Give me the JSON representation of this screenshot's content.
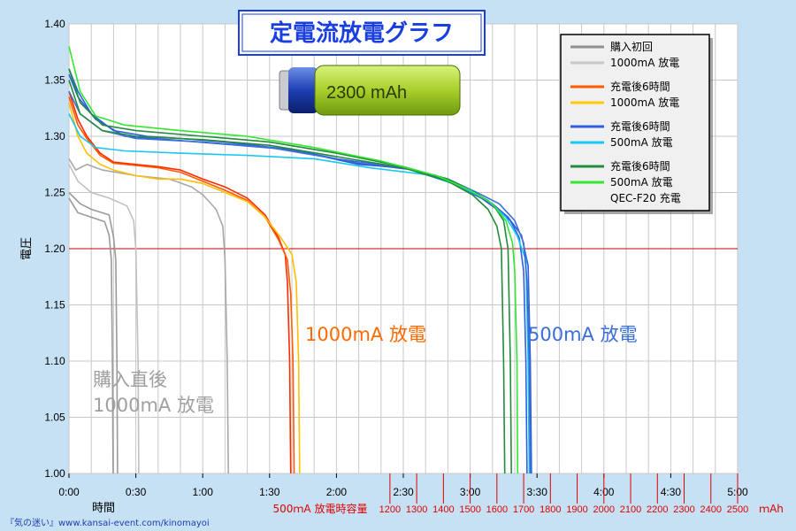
{
  "chart_data": {
    "type": "line",
    "title": "定電流放電グラフ",
    "xlabel": "時間",
    "ylabel": "電圧",
    "xlim": [
      0,
      300
    ],
    "ylim": [
      1.0,
      1.4
    ],
    "y_ticks": [
      "1.00",
      "1.05",
      "1.10",
      "1.15",
      "1.20",
      "1.25",
      "1.30",
      "1.35",
      "1.40"
    ],
    "x_ticks": [
      "0:00",
      "0:30",
      "1:00",
      "1:30",
      "2:00",
      "2:30",
      "3:00",
      "3:30",
      "4:00",
      "4:30",
      "5:00"
    ],
    "capacity_axis": {
      "label": "500ｍA 放電時容量",
      "ticks": [
        "1200",
        "1300",
        "1400",
        "1500",
        "1600",
        "1700",
        "1800",
        "1900",
        "2000",
        "2100",
        "2200",
        "2300",
        "2400",
        "2500"
      ],
      "unit": "ｍAh",
      "color": "#e00000"
    },
    "reference_line": {
      "y": 1.2,
      "color": "#cc0000"
    },
    "battery_label": "2300 mAh",
    "annotations": [
      {
        "text": "購入直後",
        "color": "#a0a0a0"
      },
      {
        "text": "1000mA 放電",
        "color": "#a0a0a0"
      },
      {
        "text": "1000mA 放電",
        "color": "#ff6a00"
      },
      {
        "text": "500mA 放電",
        "color": "#3a6fd8"
      }
    ],
    "legend": {
      "placement": "top-right",
      "groups": [
        {
          "lines": [
            "購入初回",
            "1000mA 放電"
          ],
          "colors": [
            "#909090",
            "#c8c8c8"
          ]
        },
        {
          "lines": [
            "充電後6時間",
            "1000mA 放電"
          ],
          "colors": [
            "#ff5a00",
            "#ffcc00"
          ]
        },
        {
          "lines": [
            "充電後6時間",
            "500mA 放電"
          ],
          "colors": [
            "#2f5fe0",
            "#19c8f0"
          ]
        },
        {
          "lines": [
            "充電後6時間",
            "500mA 放電",
            "QEC-F20 充電"
          ],
          "colors": [
            "#228b3c",
            "#33e633"
          ]
        }
      ]
    },
    "series": [
      {
        "color": "#9a9a9a",
        "points": [
          [
            0,
            1.245
          ],
          [
            4,
            1.232
          ],
          [
            10,
            1.228
          ],
          [
            16,
            1.224
          ],
          [
            18,
            1.212
          ],
          [
            19,
            1.19
          ],
          [
            19.5,
            1.1
          ],
          [
            19.8,
            1.0
          ]
        ]
      },
      {
        "color": "#9a9a9a",
        "points": [
          [
            0,
            1.25
          ],
          [
            5,
            1.24
          ],
          [
            10,
            1.235
          ],
          [
            18,
            1.23
          ],
          [
            20,
            1.21
          ],
          [
            21,
            1.19
          ],
          [
            21.5,
            1.1
          ],
          [
            21.8,
            1.0
          ]
        ]
      },
      {
        "color": "#c0c0c0",
        "points": [
          [
            0,
            1.275
          ],
          [
            4,
            1.26
          ],
          [
            10,
            1.25
          ],
          [
            18,
            1.245
          ],
          [
            26,
            1.238
          ],
          [
            29,
            1.225
          ],
          [
            30,
            1.2
          ],
          [
            31,
            1.1
          ],
          [
            31.3,
            1.0
          ]
        ]
      },
      {
        "color": "#a8a8a8",
        "points": [
          [
            0,
            1.28
          ],
          [
            3,
            1.27
          ],
          [
            8,
            1.275
          ],
          [
            15,
            1.27
          ],
          [
            30,
            1.265
          ],
          [
            45,
            1.262
          ],
          [
            55,
            1.255
          ],
          [
            60,
            1.248
          ],
          [
            66,
            1.235
          ],
          [
            69,
            1.22
          ],
          [
            70,
            1.19
          ],
          [
            71,
            1.1
          ],
          [
            71.5,
            1.0
          ]
        ]
      },
      {
        "color": "#ff2a00",
        "points": [
          [
            0,
            1.34
          ],
          [
            4,
            1.315
          ],
          [
            8,
            1.3
          ],
          [
            14,
            1.285
          ],
          [
            20,
            1.277
          ],
          [
            30,
            1.275
          ],
          [
            40,
            1.273
          ],
          [
            50,
            1.27
          ],
          [
            60,
            1.262
          ],
          [
            70,
            1.255
          ],
          [
            80,
            1.245
          ],
          [
            88,
            1.23
          ],
          [
            94,
            1.21
          ],
          [
            97,
            1.195
          ],
          [
            98,
            1.17
          ],
          [
            99,
            1.1
          ],
          [
            99.5,
            1.0
          ]
        ]
      },
      {
        "color": "#ff5a00",
        "points": [
          [
            0,
            1.335
          ],
          [
            4,
            1.31
          ],
          [
            8,
            1.298
          ],
          [
            14,
            1.283
          ],
          [
            20,
            1.276
          ],
          [
            30,
            1.274
          ],
          [
            40,
            1.272
          ],
          [
            50,
            1.268
          ],
          [
            60,
            1.26
          ],
          [
            70,
            1.252
          ],
          [
            80,
            1.243
          ],
          [
            88,
            1.228
          ],
          [
            94,
            1.208
          ],
          [
            98,
            1.19
          ],
          [
            99.5,
            1.16
          ],
          [
            100.5,
            1.1
          ],
          [
            101,
            1.0
          ]
        ]
      },
      {
        "color": "#ffc000",
        "points": [
          [
            0,
            1.33
          ],
          [
            4,
            1.3
          ],
          [
            8,
            1.285
          ],
          [
            14,
            1.275
          ],
          [
            20,
            1.27
          ],
          [
            30,
            1.265
          ],
          [
            40,
            1.262
          ],
          [
            50,
            1.262
          ],
          [
            60,
            1.258
          ],
          [
            70,
            1.25
          ],
          [
            80,
            1.242
          ],
          [
            88,
            1.228
          ],
          [
            95,
            1.21
          ],
          [
            100,
            1.195
          ],
          [
            102,
            1.17
          ],
          [
            103,
            1.1
          ],
          [
            103.5,
            1.0
          ]
        ]
      },
      {
        "color": "#2f5fe0",
        "points": [
          [
            0,
            1.36
          ],
          [
            4,
            1.34
          ],
          [
            10,
            1.32
          ],
          [
            20,
            1.305
          ],
          [
            35,
            1.3
          ],
          [
            50,
            1.298
          ],
          [
            70,
            1.295
          ],
          [
            100,
            1.288
          ],
          [
            130,
            1.275
          ],
          [
            150,
            1.272
          ],
          [
            165,
            1.265
          ],
          [
            175,
            1.255
          ],
          [
            185,
            1.245
          ],
          [
            192,
            1.235
          ],
          [
            198,
            1.225
          ],
          [
            202,
            1.21
          ],
          [
            204,
            1.18
          ],
          [
            205,
            1.1
          ],
          [
            205.5,
            1.0
          ]
        ]
      },
      {
        "color": "#2f5fe0",
        "points": [
          [
            0,
            1.355
          ],
          [
            4,
            1.335
          ],
          [
            12,
            1.315
          ],
          [
            25,
            1.3
          ],
          [
            45,
            1.297
          ],
          [
            70,
            1.293
          ],
          [
            100,
            1.288
          ],
          [
            130,
            1.276
          ],
          [
            155,
            1.27
          ],
          [
            170,
            1.26
          ],
          [
            180,
            1.25
          ],
          [
            190,
            1.24
          ],
          [
            197,
            1.228
          ],
          [
            203,
            1.212
          ],
          [
            206,
            1.185
          ],
          [
            207,
            1.1
          ],
          [
            207.5,
            1.0
          ]
        ]
      },
      {
        "color": "#19c8f0",
        "points": [
          [
            0,
            1.32
          ],
          [
            5,
            1.3
          ],
          [
            12,
            1.29
          ],
          [
            25,
            1.287
          ],
          [
            50,
            1.285
          ],
          [
            80,
            1.283
          ],
          [
            110,
            1.28
          ],
          [
            135,
            1.272
          ],
          [
            160,
            1.266
          ],
          [
            175,
            1.256
          ],
          [
            188,
            1.243
          ],
          [
            196,
            1.228
          ],
          [
            201,
            1.212
          ],
          [
            205,
            1.19
          ],
          [
            206,
            1.1
          ],
          [
            206.5,
            1.0
          ]
        ]
      },
      {
        "color": "#3a6fd8",
        "points": [
          [
            0,
            1.34
          ],
          [
            5,
            1.32
          ],
          [
            15,
            1.305
          ],
          [
            30,
            1.298
          ],
          [
            60,
            1.295
          ],
          [
            90,
            1.29
          ],
          [
            120,
            1.28
          ],
          [
            150,
            1.272
          ],
          [
            170,
            1.262
          ],
          [
            183,
            1.25
          ],
          [
            193,
            1.24
          ],
          [
            200,
            1.225
          ],
          [
            204,
            1.205
          ],
          [
            205.5,
            1.17
          ],
          [
            206.5,
            1.1
          ],
          [
            207,
            1.0
          ]
        ]
      },
      {
        "color": "#228b3c",
        "points": [
          [
            0,
            1.36
          ],
          [
            5,
            1.33
          ],
          [
            15,
            1.31
          ],
          [
            30,
            1.305
          ],
          [
            60,
            1.3
          ],
          [
            90,
            1.295
          ],
          [
            120,
            1.285
          ],
          [
            150,
            1.273
          ],
          [
            170,
            1.262
          ],
          [
            182,
            1.25
          ],
          [
            190,
            1.24
          ],
          [
            195,
            1.225
          ],
          [
            197,
            1.2
          ],
          [
            198,
            1.1
          ],
          [
            198.5,
            1.0
          ]
        ]
      },
      {
        "color": "#228b3c",
        "points": [
          [
            0,
            1.35
          ],
          [
            5,
            1.32
          ],
          [
            15,
            1.305
          ],
          [
            30,
            1.3
          ],
          [
            60,
            1.297
          ],
          [
            90,
            1.292
          ],
          [
            120,
            1.282
          ],
          [
            150,
            1.272
          ],
          [
            170,
            1.26
          ],
          [
            181,
            1.248
          ],
          [
            188,
            1.235
          ],
          [
            192,
            1.22
          ],
          [
            194,
            1.2
          ],
          [
            195,
            1.1
          ],
          [
            195.5,
            1.0
          ]
        ]
      },
      {
        "color": "#33e633",
        "points": [
          [
            0,
            1.38
          ],
          [
            5,
            1.34
          ],
          [
            12,
            1.318
          ],
          [
            25,
            1.31
          ],
          [
            50,
            1.305
          ],
          [
            80,
            1.3
          ],
          [
            110,
            1.29
          ],
          [
            140,
            1.278
          ],
          [
            165,
            1.265
          ],
          [
            180,
            1.252
          ],
          [
            190,
            1.24
          ],
          [
            196,
            1.225
          ],
          [
            199,
            1.205
          ],
          [
            200,
            1.18
          ],
          [
            201,
            1.1
          ],
          [
            201.3,
            1.0
          ]
        ]
      }
    ]
  },
  "watermark": "『気の迷い』www.kansai-event.com/kinomayoi"
}
